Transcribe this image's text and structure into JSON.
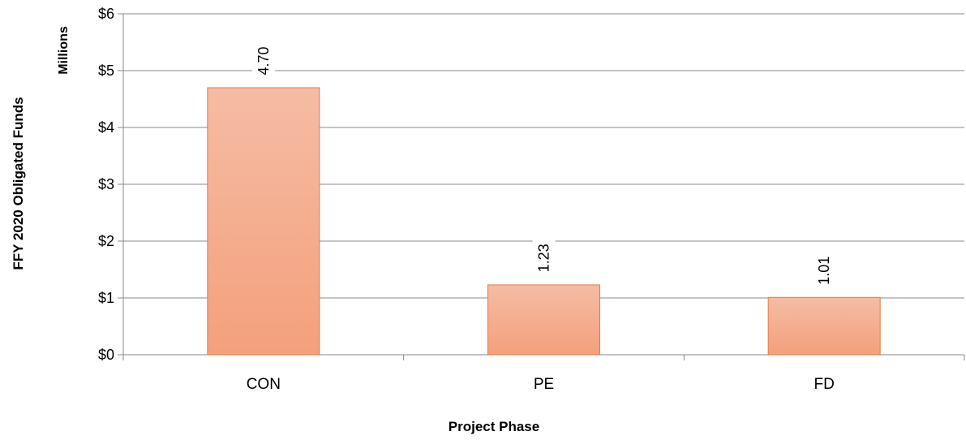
{
  "chart_data": {
    "type": "bar",
    "categories": [
      "CON",
      "PE",
      "FD"
    ],
    "values": [
      4.7,
      1.23,
      1.01
    ],
    "data_labels": [
      "4.70",
      "1.23",
      "1.01"
    ],
    "title": "",
    "xlabel": "Project Phase",
    "ylabel": "FFY 2020 Obligated Funds",
    "y_unit_label": "Millions",
    "ylim": [
      0,
      6
    ],
    "y_ticks": [
      0,
      1,
      2,
      3,
      4,
      5,
      6
    ],
    "y_tick_labels": [
      "$0",
      "$1",
      "$2",
      "$3",
      "$4",
      "$5",
      "$6"
    ],
    "grid": true,
    "legend": "none",
    "colors": {
      "bar_fill_top": "#f5bca4",
      "bar_fill_bottom": "#f4a07c",
      "bar_stroke": "#e8783f",
      "gridline": "#888888"
    }
  }
}
